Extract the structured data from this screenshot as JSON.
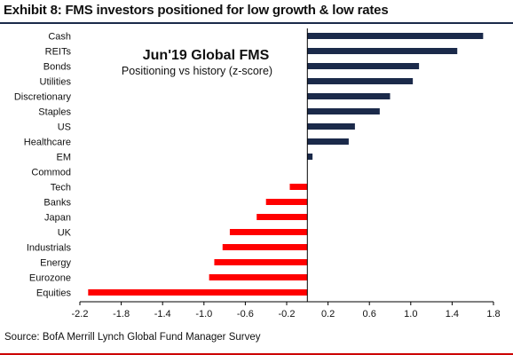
{
  "header": {
    "title": "Exhibit 8: FMS investors positioned for low growth & low rates"
  },
  "footer": {
    "source": "Source:  BofA Merrill Lynch Global Fund Manager Survey"
  },
  "colors": {
    "positive": "#1b2a4a",
    "negative": "#ff0000",
    "axis": "#000000"
  },
  "chart_data": {
    "type": "bar",
    "orientation": "horizontal",
    "annotation_title": "Jun'19 Global FMS",
    "annotation_subtitle": "Positioning vs history (z-score)",
    "categories": [
      "Cash",
      "REITs",
      "Bonds",
      "Utilities",
      "Discretionary",
      "Staples",
      "US",
      "Healthcare",
      "EM",
      "Commod",
      "Tech",
      "Banks",
      "Japan",
      "UK",
      "Industrials",
      "Energy",
      "Eurozone",
      "Equities"
    ],
    "values": [
      1.7,
      1.45,
      1.08,
      1.02,
      0.8,
      0.7,
      0.46,
      0.4,
      0.05,
      0.0,
      -0.17,
      -0.4,
      -0.49,
      -0.75,
      -0.82,
      -0.9,
      -0.95,
      -2.12
    ],
    "xlim": [
      -2.2,
      1.8
    ],
    "xticks": [
      -2.2,
      -1.8,
      -1.4,
      -1.0,
      -0.6,
      -0.2,
      0.2,
      0.6,
      1.0,
      1.4,
      1.8
    ],
    "xtick_labels": [
      "-2.2",
      "-1.8",
      "-1.4",
      "-1.0",
      "-0.6",
      "-0.2",
      "0.2",
      "0.6",
      "1.0",
      "1.4",
      "1.8"
    ],
    "grid": false,
    "legend": "none"
  }
}
